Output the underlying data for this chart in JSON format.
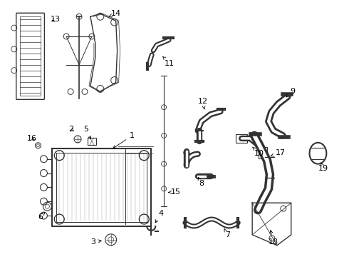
{
  "bg_color": "#ffffff",
  "line_color": "#333333",
  "label_color": "#000000",
  "label_fontsize": 8,
  "fig_width": 4.9,
  "fig_height": 3.6,
  "dpi": 100
}
